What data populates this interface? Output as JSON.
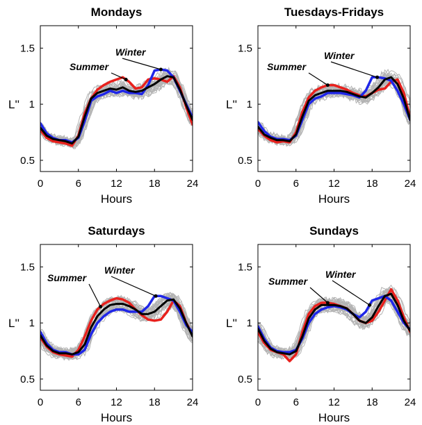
{
  "chart_data": [
    {
      "type": "line",
      "title": "Mondays",
      "xlabel": "Hours",
      "ylabel": "L''",
      "xlim": [
        0,
        24
      ],
      "ylim": [
        0.4,
        1.7
      ],
      "xticks": [
        "0",
        "6",
        "12",
        "18",
        "24"
      ],
      "yticks": [
        "0.5",
        "1",
        "1.5"
      ],
      "x": [
        0,
        1,
        2,
        3,
        4,
        5,
        6,
        7,
        8,
        9,
        10,
        11,
        12,
        13,
        14,
        15,
        16,
        17,
        18,
        19,
        20,
        21,
        22,
        23,
        24
      ],
      "series": [
        {
          "name": "Summer",
          "color": "#e8211d",
          "values": [
            0.77,
            0.7,
            0.67,
            0.66,
            0.65,
            0.63,
            0.72,
            0.92,
            1.05,
            1.13,
            1.17,
            1.2,
            1.22,
            1.24,
            1.2,
            1.14,
            1.15,
            1.22,
            1.23,
            1.22,
            1.2,
            1.25,
            1.15,
            0.97,
            0.82
          ]
        },
        {
          "name": "Winter",
          "color": "#1f26e8",
          "values": [
            0.83,
            0.74,
            0.7,
            0.68,
            0.68,
            0.66,
            0.7,
            0.85,
            1.03,
            1.07,
            1.09,
            1.12,
            1.1,
            1.12,
            1.1,
            1.1,
            1.09,
            1.17,
            1.3,
            1.31,
            1.3,
            1.24,
            1.12,
            1.0,
            0.88
          ]
        },
        {
          "name": "",
          "color": "#000000",
          "values": [
            0.79,
            0.72,
            0.69,
            0.68,
            0.67,
            0.65,
            0.71,
            0.89,
            1.05,
            1.1,
            1.12,
            1.14,
            1.13,
            1.15,
            1.12,
            1.11,
            1.12,
            1.15,
            1.18,
            1.22,
            1.25,
            1.24,
            1.13,
            0.99,
            0.86
          ]
        }
      ],
      "annotations": [
        {
          "text": "Summer",
          "series": "Summer",
          "x": 13.5
        },
        {
          "text": "Winter",
          "series": "Winter",
          "x": 19
        }
      ]
    },
    {
      "type": "line",
      "title": "Tuesdays-Fridays",
      "xlabel": "Hours",
      "ylabel": "L''",
      "xlim": [
        0,
        24
      ],
      "ylim": [
        0.4,
        1.7
      ],
      "xticks": [
        "0",
        "6",
        "12",
        "18",
        "24"
      ],
      "yticks": [
        "0.5",
        "1",
        "1.5"
      ],
      "x": [
        0,
        1,
        2,
        3,
        4,
        5,
        6,
        7,
        8,
        9,
        10,
        11,
        12,
        13,
        14,
        15,
        16,
        17,
        18,
        19,
        20,
        21,
        22,
        23,
        24
      ],
      "series": [
        {
          "name": "Summer",
          "color": "#e8211d",
          "values": [
            0.78,
            0.72,
            0.68,
            0.66,
            0.67,
            0.66,
            0.75,
            0.93,
            1.06,
            1.12,
            1.15,
            1.17,
            1.17,
            1.15,
            1.13,
            1.1,
            1.08,
            1.07,
            1.1,
            1.13,
            1.14,
            1.2,
            1.22,
            1.1,
            0.88
          ]
        },
        {
          "name": "Winter",
          "color": "#1f26e8",
          "values": [
            0.84,
            0.76,
            0.71,
            0.69,
            0.69,
            0.68,
            0.72,
            0.86,
            1.0,
            1.05,
            1.07,
            1.1,
            1.1,
            1.1,
            1.09,
            1.08,
            1.06,
            1.12,
            1.24,
            1.24,
            1.23,
            1.21,
            1.12,
            1.0,
            0.86
          ]
        },
        {
          "name": "",
          "color": "#000000",
          "values": [
            0.8,
            0.73,
            0.7,
            0.68,
            0.68,
            0.67,
            0.73,
            0.89,
            1.03,
            1.08,
            1.1,
            1.12,
            1.12,
            1.12,
            1.11,
            1.09,
            1.07,
            1.06,
            1.1,
            1.15,
            1.22,
            1.24,
            1.18,
            1.05,
            0.86
          ]
        }
      ],
      "annotations": [
        {
          "text": "Summer",
          "series": "Summer",
          "x": 11
        },
        {
          "text": "Winter",
          "series": "Winter",
          "x": 18.8
        }
      ]
    },
    {
      "type": "line",
      "title": "Saturdays",
      "xlabel": "Hours",
      "ylabel": "L''",
      "xlim": [
        0,
        24
      ],
      "ylim": [
        0.4,
        1.7
      ],
      "xticks": [
        "0",
        "6",
        "12",
        "18",
        "24"
      ],
      "yticks": [
        "0.5",
        "1",
        "1.5"
      ],
      "x": [
        0,
        1,
        2,
        3,
        4,
        5,
        6,
        7,
        8,
        9,
        10,
        11,
        12,
        13,
        14,
        15,
        16,
        17,
        18,
        19,
        20,
        21,
        22,
        23,
        24
      ],
      "series": [
        {
          "name": "Summer",
          "color": "#e8211d",
          "values": [
            0.87,
            0.79,
            0.74,
            0.72,
            0.71,
            0.7,
            0.76,
            0.88,
            1.02,
            1.12,
            1.17,
            1.2,
            1.22,
            1.21,
            1.18,
            1.12,
            1.07,
            1.03,
            1.02,
            1.03,
            1.1,
            1.2,
            1.15,
            1.0,
            0.9
          ]
        },
        {
          "name": "Winter",
          "color": "#1f26e8",
          "values": [
            0.92,
            0.82,
            0.76,
            0.74,
            0.74,
            0.72,
            0.72,
            0.76,
            0.9,
            1.0,
            1.06,
            1.1,
            1.12,
            1.12,
            1.1,
            1.1,
            1.1,
            1.15,
            1.24,
            1.24,
            1.22,
            1.2,
            1.1,
            0.98,
            0.92
          ]
        },
        {
          "name": "",
          "color": "#000000",
          "values": [
            0.89,
            0.8,
            0.75,
            0.73,
            0.73,
            0.72,
            0.74,
            0.81,
            0.96,
            1.06,
            1.12,
            1.16,
            1.17,
            1.17,
            1.15,
            1.12,
            1.08,
            1.08,
            1.1,
            1.15,
            1.2,
            1.21,
            1.13,
            1.0,
            0.88
          ]
        }
      ],
      "annotations": [
        {
          "text": "Summer",
          "series": "Summer",
          "x": 9.5
        },
        {
          "text": "Winter",
          "series": "Winter",
          "x": 18.2
        }
      ]
    },
    {
      "type": "line",
      "title": "Sundays",
      "xlabel": "Hours",
      "ylabel": "L''",
      "xlim": [
        0,
        24
      ],
      "ylim": [
        0.4,
        1.7
      ],
      "xticks": [
        "0",
        "6",
        "12",
        "18",
        "24"
      ],
      "yticks": [
        "0.5",
        "1",
        "1.5"
      ],
      "x": [
        0,
        1,
        2,
        3,
        4,
        5,
        6,
        7,
        8,
        9,
        10,
        11,
        12,
        13,
        14,
        15,
        16,
        17,
        18,
        19,
        20,
        21,
        22,
        23,
        24
      ],
      "series": [
        {
          "name": "Summer",
          "color": "#e8211d",
          "values": [
            0.92,
            0.82,
            0.76,
            0.74,
            0.72,
            0.66,
            0.72,
            0.92,
            1.08,
            1.15,
            1.18,
            1.18,
            1.17,
            1.15,
            1.13,
            1.08,
            1.02,
            1.0,
            1.02,
            1.1,
            1.2,
            1.3,
            1.2,
            1.05,
            0.92
          ]
        },
        {
          "name": "Winter",
          "color": "#1f26e8",
          "values": [
            0.97,
            0.86,
            0.78,
            0.75,
            0.74,
            0.74,
            0.76,
            0.86,
            1.0,
            1.08,
            1.12,
            1.14,
            1.15,
            1.14,
            1.12,
            1.08,
            1.05,
            1.1,
            1.2,
            1.22,
            1.24,
            1.2,
            1.1,
            1.0,
            0.94
          ]
        },
        {
          "name": "",
          "color": "#000000",
          "values": [
            0.95,
            0.84,
            0.77,
            0.74,
            0.73,
            0.72,
            0.75,
            0.88,
            1.04,
            1.12,
            1.16,
            1.16,
            1.16,
            1.15,
            1.13,
            1.08,
            1.02,
            1.0,
            1.05,
            1.15,
            1.24,
            1.26,
            1.16,
            1.02,
            0.93
          ]
        }
      ],
      "annotations": [
        {
          "text": "Summer",
          "series": "Summer",
          "x": 11
        },
        {
          "text": "Winter",
          "series": "Winter",
          "x": 17.6
        }
      ]
    }
  ]
}
